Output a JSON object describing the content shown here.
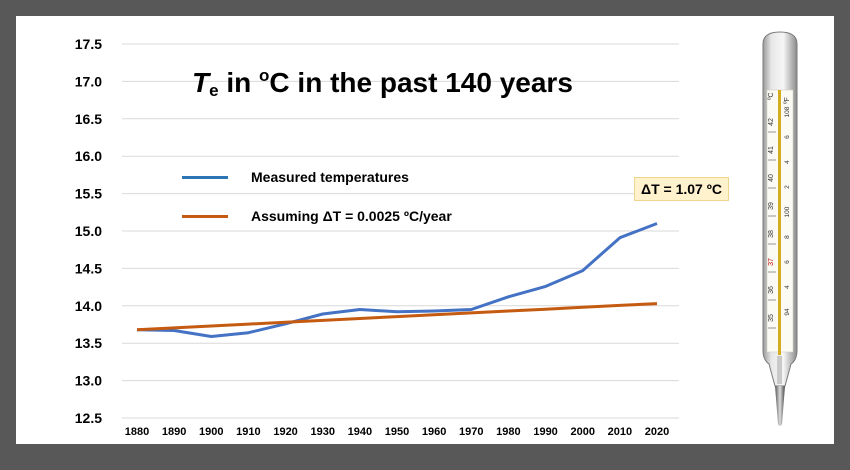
{
  "title": {
    "symbol": "T",
    "subscript": "e",
    "text_in": " in ",
    "unit_sup": "o",
    "text_rest": "C in the past 140 years"
  },
  "legend": [
    {
      "label": "Measured temperatures",
      "color": "#4472c4"
    },
    {
      "label": "Assuming ΔT = 0.0025 ºC/year",
      "color": "#c55a11"
    }
  ],
  "annotation": {
    "text": "ΔT = 1.07 ºC"
  },
  "thermometer": {
    "scale_c_label": "ºC",
    "scale_f_label": "ºF",
    "celsius_ticks": [
      "42",
      "41",
      "40",
      "39",
      "38",
      "37",
      "36",
      "35"
    ],
    "fahrenheit_ticks": [
      "108",
      "6",
      "4",
      "2",
      "100",
      "8",
      "6",
      "4",
      "94"
    ]
  },
  "chart_data": {
    "type": "line",
    "x": [
      1880,
      1890,
      1900,
      1910,
      1920,
      1930,
      1940,
      1950,
      1960,
      1970,
      1980,
      1990,
      2000,
      2010,
      2020
    ],
    "ylim": [
      12.5,
      17.5
    ],
    "y_ticks": [
      "17.5",
      "17.0",
      "16.5",
      "16.0",
      "15.5",
      "15.0",
      "14.5",
      "14.0",
      "13.5",
      "13.0",
      "12.5"
    ],
    "x_ticks": [
      "1880",
      "1890",
      "1900",
      "1910",
      "1920",
      "1930",
      "1940",
      "1950",
      "1960",
      "1970",
      "1980",
      "1990",
      "2000",
      "2010",
      "2020"
    ],
    "grid": true,
    "series": [
      {
        "name": "Measured temperatures",
        "color": "#4472c4",
        "values": [
          13.68,
          13.67,
          13.59,
          13.64,
          13.76,
          13.89,
          13.95,
          13.92,
          13.93,
          13.95,
          14.12,
          14.26,
          14.47,
          14.91,
          15.1
        ]
      },
      {
        "name": "Assuming ΔT = 0.0025 ºC/year",
        "color": "#c55a11",
        "values": [
          13.68,
          13.705,
          13.73,
          13.755,
          13.78,
          13.805,
          13.83,
          13.855,
          13.88,
          13.905,
          13.93,
          13.955,
          13.98,
          14.005,
          14.03
        ]
      }
    ]
  }
}
